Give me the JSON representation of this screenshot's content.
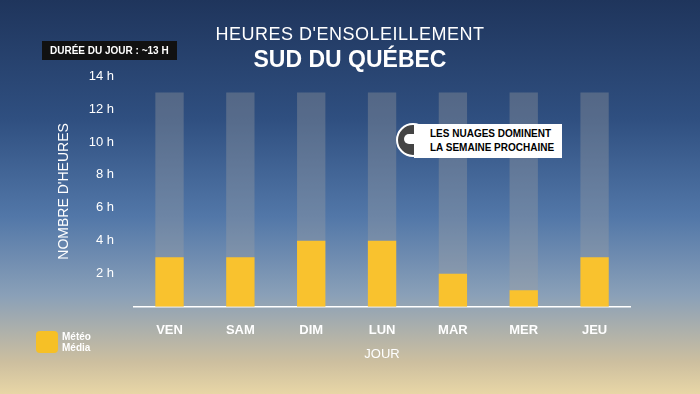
{
  "chart_data": {
    "type": "bar",
    "title": "HEURES D'ENSOLEILLEMENT",
    "subtitle": "SUD DU QUÉBEC",
    "day_length_label": "DURÉE DU JOUR : ~13 H",
    "annotation": [
      "LES NUAGES DOMINENT",
      "LA SEMAINE PROCHAINE"
    ],
    "source": "Météo Média",
    "x_label": "JOUR",
    "y_label": "NOMBRE D'HEURES",
    "categories": [
      "VEN",
      "SAM",
      "DIM",
      "LUN",
      "MAR",
      "MER",
      "JEU"
    ],
    "series": [
      {
        "values": [
          13,
          13,
          13,
          13,
          13,
          13,
          13
        ],
        "color": "rgba(160,160,160,0.35)"
      },
      {
        "values": [
          3,
          3,
          4,
          4,
          2,
          1,
          3
        ],
        "color": "#f9c22e"
      }
    ],
    "ylim": [
      0,
      14
    ],
    "yticks": [
      {
        "value": 2,
        "label": "2 h"
      },
      {
        "value": 4,
        "label": "4 h"
      },
      {
        "value": 6,
        "label": "6 h"
      },
      {
        "value": 8,
        "label": "8 h"
      },
      {
        "value": 10,
        "label": "10 h"
      },
      {
        "value": 12,
        "label": "12 h"
      },
      {
        "value": 14,
        "label": "14 h"
      }
    ],
    "grid": false
  }
}
